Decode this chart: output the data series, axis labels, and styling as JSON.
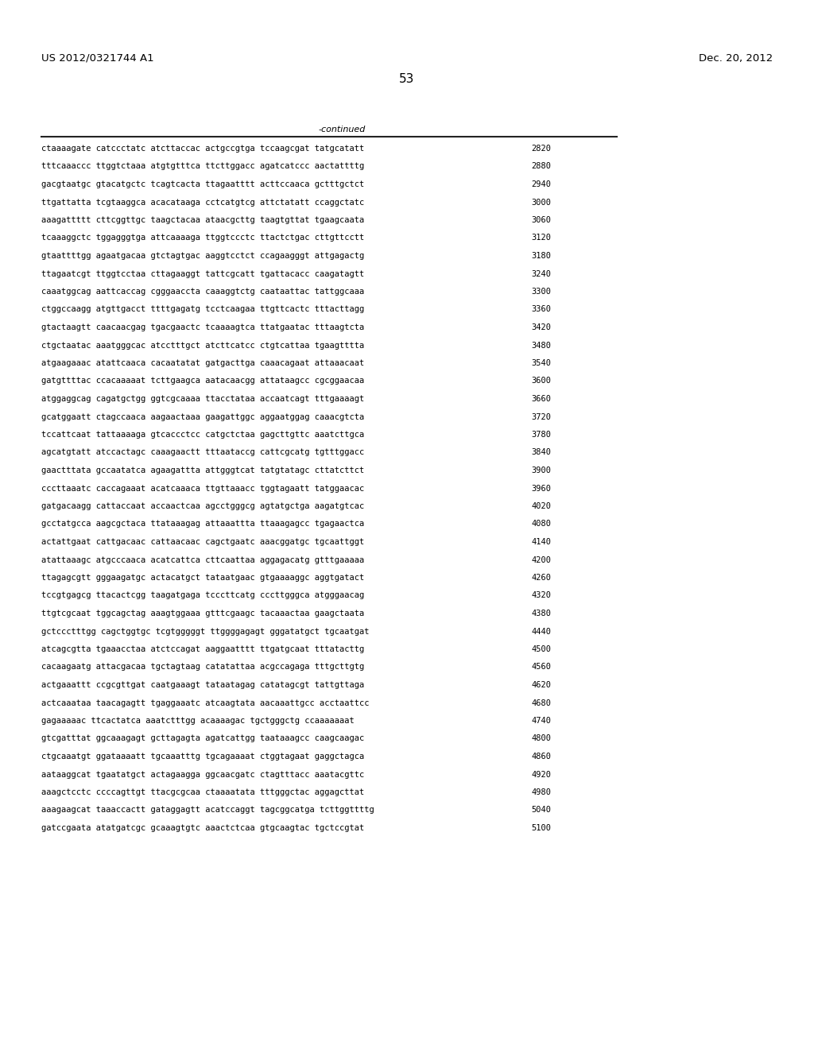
{
  "header_left": "US 2012/0321744 A1",
  "header_right": "Dec. 20, 2012",
  "page_number": "53",
  "continued_label": "-continued",
  "bg_color": "#ffffff",
  "text_color": "#000000",
  "font_size": 7.5,
  "header_font_size": 9.5,
  "page_num_font_size": 11,
  "sequence_lines": [
    [
      "ctaaaagate catccctatc atcttaccac actgccgtga tccaagcgat tatgcatatt",
      "2820"
    ],
    [
      "tttcaaaccc ttggtctaaa atgtgtttca ttcttggacc agatcatccc aactattttg",
      "2880"
    ],
    [
      "gacgtaatgc gtacatgctc tcagtcacta ttagaatttt acttccaaca gctttgctct",
      "2940"
    ],
    [
      "ttgattatta tcgtaaggca acacataaga cctcatgtcg attctatatt ccaggctatc",
      "3000"
    ],
    [
      "aaagattttt cttcggttgc taagctacaa ataacgcttg taagtgttat tgaagcaata",
      "3060"
    ],
    [
      "tcaaaggctc tggagggtga attcaaaaga ttggtccctc ttactctgac cttgttcctt",
      "3120"
    ],
    [
      "gtaattttgg agaatgacaa gtctagtgac aaggtcctct ccagaagggt attgagactg",
      "3180"
    ],
    [
      "ttagaatcgt ttggtcctaa cttagaaggt tattcgcatt tgattacacc caagatagtt",
      "3240"
    ],
    [
      "caaatggcag aattcaccag cgggaaccta caaaggtctg caataattac tattggcaaa",
      "3300"
    ],
    [
      "ctggccaagg atgttgacct ttttgagatg tcctcaagaa ttgttcactc tttacttagg",
      "3360"
    ],
    [
      "gtactaagtt caacaacgag tgacgaactc tcaaaagtca ttatgaatac tttaagtcta",
      "3420"
    ],
    [
      "ctgctaatac aaatgggcac atcctttgct atcttcatcc ctgtcattaa tgaagtttta",
      "3480"
    ],
    [
      "atgaagaaac atattcaaca cacaatatat gatgacttga caaacagaat attaaacaat",
      "3540"
    ],
    [
      "gatgttttac ccacaaaaat tcttgaagca aatacaacgg attataagcc cgcggaacaa",
      "3600"
    ],
    [
      "atggaggcag cagatgctgg ggtcgcaaaa ttacctataa accaatcagt tttgaaaagt",
      "3660"
    ],
    [
      "gcatggaatt ctagccaaca aagaactaaa gaagattggc aggaatggag caaacgtcta",
      "3720"
    ],
    [
      "tccattcaat tattaaaaga gtcaccctcc catgctctaa gagcttgttc aaatcttgca",
      "3780"
    ],
    [
      "agcatgtatt atccactagc caaagaactt tttaataccg cattcgcatg tgtttggacc",
      "3840"
    ],
    [
      "gaactttata gccaatatca agaagattta attgggtcat tatgtatagc cttatcttct",
      "3900"
    ],
    [
      "cccttaaatc caccagaaat acatcaaaca ttgttaaacc tggtagaatt tatggaacac",
      "3960"
    ],
    [
      "gatgacaagg cattaccaat accaactcaa agcctgggcg agtatgctga aagatgtcac",
      "4020"
    ],
    [
      "gcctatgcca aagcgctaca ttataaagag attaaattta ttaaagagcc tgagaactca",
      "4080"
    ],
    [
      "actattgaat cattgacaac cattaacaac cagctgaatc aaacggatgc tgcaattggt",
      "4140"
    ],
    [
      "atattaaagc atgcccaaca acatcattca cttcaattaa aggagacatg gtttgaaaaa",
      "4200"
    ],
    [
      "ttagagcgtt gggaagatgc actacatgct tataatgaac gtgaaaaggc aggtgatact",
      "4260"
    ],
    [
      "tccgtgagcg ttacactcgg taagatgaga tcccttcatg cccttgggca atgggaacag",
      "4320"
    ],
    [
      "ttgtcgcaat tggcagctag aaagtggaaa gtttcgaagc tacaaactaa gaagctaata",
      "4380"
    ],
    [
      "gctccctttgg cagctggtgc tcgtgggggt ttggggagagt gggatatgct tgcaatgat",
      "4440"
    ],
    [
      "atcagcgtta tgaaacctaa atctccagat aaggaatttt ttgatgcaat tttatacttg",
      "4500"
    ],
    [
      "cacaagaatg attacgacaa tgctagtaag catatattaa acgccagaga tttgcttgtg",
      "4560"
    ],
    [
      "actgaaattt ccgcgttgat caatgaaagt tataatagag catatagcgt tattgttaga",
      "4620"
    ],
    [
      "actcaaataa taacagagtt tgaggaaatc atcaagtata aacaaattgcc acctaattcc",
      "4680"
    ],
    [
      "gagaaaaac ttcactatca aaatctttgg acaaaagac tgctgggctg ccaaaaaaat",
      "4740"
    ],
    [
      "gtcgatttat ggcaaagagt gcttagagta agatcattgg taataaagcc caagcaagac",
      "4800"
    ],
    [
      "ctgcaaatgt ggataaaatt tgcaaatttg tgcagaaaat ctggtagaat gaggctagca",
      "4860"
    ],
    [
      "aataaggcat tgaatatgct actagaagga ggcaacgatc ctagtttacc aaatacgttc",
      "4920"
    ],
    [
      "aaagctcctc ccccagttgt ttacgcgcaa ctaaaatata tttgggctac aggagcttat",
      "4980"
    ],
    [
      "aaagaagcat taaaccactt gataggagtt acatccaggt tagcggcatga tcttggttttg",
      "5040"
    ],
    [
      "gatccgaata atatgatcgc gcaaagtgtc aaactctcaa gtgcaagtac tgctccgtat",
      "5100"
    ]
  ]
}
